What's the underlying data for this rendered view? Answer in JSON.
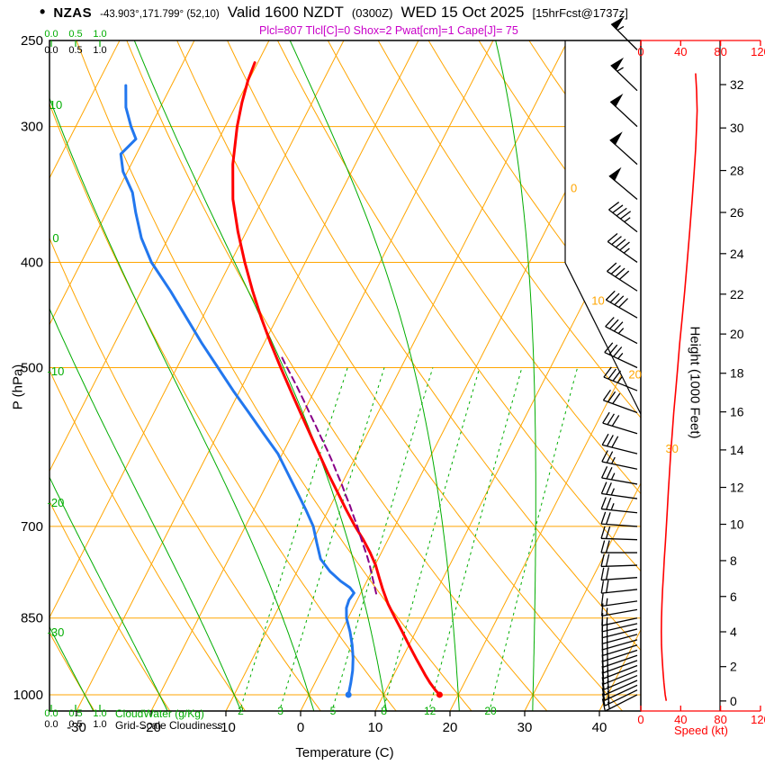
{
  "header": {
    "bullet": "•",
    "station": "NZAS",
    "coords": "-43.903°,171.799° (52,10)",
    "valid_main": "Valid 1600 NZDT",
    "valid_z": "(0300Z)",
    "valid_date": "WED 15 Oct 2025",
    "fcst": "[15hrFcst@1737z]",
    "params": "Plcl=807 Tlcl[C]=0 Shox=2 Pwat[cm]=1 Cape[J]= 75"
  },
  "axes": {
    "pressure_label": "P (hPa)",
    "pressure_ticks": [
      250,
      300,
      400,
      500,
      700,
      850,
      1000
    ],
    "temp_label": "Temperature (C)",
    "temp_ticks": [
      -30,
      -20,
      -10,
      0,
      10,
      20,
      30,
      40
    ],
    "height_label": "Height (1000 Feet)",
    "height_ticks": [
      0,
      2,
      4,
      6,
      8,
      10,
      12,
      14,
      16,
      18,
      20,
      22,
      24,
      26,
      28,
      30,
      32
    ],
    "speed_label": "Speed (kt)",
    "speed_ticks": [
      0,
      40,
      80,
      120
    ],
    "cloudwater_label": "CloudWater (g/Kg)",
    "cloudiness_label": "Grid-Scale Cloudiness",
    "scale_values": [
      "0.0",
      "0.5",
      "1.0"
    ]
  },
  "chart_data": {
    "type": "skewt",
    "pressure_range": [
      250,
      1035
    ],
    "temp_axis_range": [
      -30,
      40
    ],
    "isobars": [
      250,
      300,
      400,
      500,
      700,
      850,
      1000
    ],
    "isotherm_range": [
      -120,
      40,
      10
    ],
    "isotherm_labels": [
      0,
      10,
      20,
      30
    ],
    "dry_adiabat_range": [
      -40,
      120,
      10
    ],
    "dry_adiabat_labels": [
      10,
      0,
      -10,
      -20,
      -30
    ],
    "moist_adiabats": [
      -30,
      -20,
      -10,
      0,
      10,
      20,
      30
    ],
    "mixing_ratios": [
      2,
      3,
      5,
      8,
      12,
      20
    ],
    "temperature_profile": [
      [
        1000,
        17.5
      ],
      [
        990,
        16.6
      ],
      [
        975,
        15.4
      ],
      [
        960,
        14.3
      ],
      [
        950,
        13.6
      ],
      [
        925,
        11.8
      ],
      [
        900,
        10
      ],
      [
        875,
        8.2
      ],
      [
        850,
        6.3
      ],
      [
        825,
        4.4
      ],
      [
        800,
        2.7
      ],
      [
        780,
        1.4
      ],
      [
        760,
        0.1
      ],
      [
        740,
        -1.5
      ],
      [
        720,
        -3.3
      ],
      [
        700,
        -5.3
      ],
      [
        675,
        -7.7
      ],
      [
        650,
        -10.1
      ],
      [
        625,
        -12.6
      ],
      [
        600,
        -15.1
      ],
      [
        575,
        -17.7
      ],
      [
        550,
        -20.4
      ],
      [
        525,
        -23.2
      ],
      [
        500,
        -26.1
      ],
      [
        475,
        -29.1
      ],
      [
        450,
        -32.1
      ],
      [
        425,
        -35.1
      ],
      [
        400,
        -38.1
      ],
      [
        375,
        -41.1
      ],
      [
        350,
        -44
      ],
      [
        325,
        -46.4
      ],
      [
        300,
        -48.4
      ],
      [
        285,
        -49.4
      ],
      [
        272,
        -50.1
      ],
      [
        262,
        -50.4
      ]
    ],
    "dewpoint_profile": [
      [
        1000,
        5.3
      ],
      [
        990,
        5.1
      ],
      [
        975,
        4.8
      ],
      [
        950,
        4.2
      ],
      [
        925,
        3.4
      ],
      [
        900,
        2.4
      ],
      [
        875,
        1.2
      ],
      [
        850,
        -0.2
      ],
      [
        832,
        -0.9
      ],
      [
        818,
        -1.1
      ],
      [
        806,
        -0.9
      ],
      [
        797,
        -1.8
      ],
      [
        786,
        -3.5
      ],
      [
        770,
        -5.6
      ],
      [
        750,
        -7.7
      ],
      [
        725,
        -9.3
      ],
      [
        700,
        -10.9
      ],
      [
        675,
        -13.1
      ],
      [
        650,
        -15.5
      ],
      [
        625,
        -18
      ],
      [
        600,
        -20.6
      ],
      [
        575,
        -23.9
      ],
      [
        550,
        -27.3
      ],
      [
        525,
        -30.9
      ],
      [
        500,
        -34.5
      ],
      [
        475,
        -38.3
      ],
      [
        450,
        -42.1
      ],
      [
        425,
        -46.1
      ],
      [
        400,
        -50.6
      ],
      [
        380,
        -53.6
      ],
      [
        360,
        -56.1
      ],
      [
        345,
        -57.9
      ],
      [
        330,
        -60.6
      ],
      [
        318,
        -62.1
      ],
      [
        308,
        -61.1
      ],
      [
        300,
        -62.6
      ],
      [
        288,
        -64.6
      ],
      [
        275,
        -66.1
      ]
    ],
    "parcel_path": [
      [
        807,
        2.1
      ],
      [
        790,
        1.1
      ],
      [
        775,
        0.2
      ],
      [
        760,
        -0.7
      ],
      [
        745,
        -1.7
      ],
      [
        730,
        -2.8
      ],
      [
        715,
        -3.9
      ],
      [
        700,
        -5
      ],
      [
        685,
        -6.2
      ],
      [
        670,
        -7.4
      ],
      [
        655,
        -8.7
      ],
      [
        640,
        -10
      ],
      [
        625,
        -11.4
      ],
      [
        610,
        -12.8
      ],
      [
        595,
        -14.3
      ],
      [
        580,
        -15.9
      ],
      [
        565,
        -17.5
      ],
      [
        550,
        -19.2
      ],
      [
        535,
        -20.9
      ],
      [
        520,
        -22.7
      ],
      [
        505,
        -24.6
      ],
      [
        495,
        -25.9
      ],
      [
        488,
        -26.8
      ]
    ],
    "wind_barbs": [
      [
        1000,
        243,
        15
      ],
      [
        990,
        244,
        15
      ],
      [
        980,
        245,
        15
      ],
      [
        970,
        246,
        15
      ],
      [
        960,
        247,
        15
      ],
      [
        950,
        248,
        15
      ],
      [
        940,
        249,
        15
      ],
      [
        930,
        250,
        15
      ],
      [
        920,
        251,
        15
      ],
      [
        910,
        252,
        15
      ],
      [
        900,
        253,
        15
      ],
      [
        890,
        254,
        15
      ],
      [
        880,
        255,
        15
      ],
      [
        870,
        256,
        15
      ],
      [
        860,
        257,
        15
      ],
      [
        850,
        258,
        15
      ],
      [
        835,
        260,
        15
      ],
      [
        820,
        262,
        15
      ],
      [
        800,
        264,
        20
      ],
      [
        780,
        266,
        20
      ],
      [
        760,
        268,
        20
      ],
      [
        740,
        270,
        20
      ],
      [
        720,
        272,
        20
      ],
      [
        700,
        274,
        20
      ],
      [
        680,
        276,
        25
      ],
      [
        660,
        278,
        25
      ],
      [
        640,
        280,
        25
      ],
      [
        620,
        282,
        25
      ],
      [
        600,
        284,
        30
      ],
      [
        575,
        287,
        30
      ],
      [
        550,
        290,
        30
      ],
      [
        525,
        292,
        35
      ],
      [
        500,
        295,
        35
      ],
      [
        475,
        298,
        35
      ],
      [
        450,
        300,
        40
      ],
      [
        425,
        303,
        40
      ],
      [
        400,
        305,
        45
      ],
      [
        375,
        308,
        45
      ],
      [
        350,
        310,
        50
      ],
      [
        325,
        312,
        50
      ],
      [
        300,
        313,
        50
      ],
      [
        278,
        314,
        55
      ],
      [
        255,
        315,
        55
      ]
    ],
    "speed_profile": [
      [
        1013,
        25.5
      ],
      [
        1000,
        24.5
      ],
      [
        975,
        23.2
      ],
      [
        950,
        22.2
      ],
      [
        925,
        21.4
      ],
      [
        900,
        20.8
      ],
      [
        875,
        20.6
      ],
      [
        850,
        20.8
      ],
      [
        825,
        21.2
      ],
      [
        800,
        21.8
      ],
      [
        775,
        22.7
      ],
      [
        750,
        23.6
      ],
      [
        725,
        24.6
      ],
      [
        700,
        25.6
      ],
      [
        675,
        26.6
      ],
      [
        650,
        27.6
      ],
      [
        625,
        28.8
      ],
      [
        600,
        30
      ],
      [
        575,
        31.5
      ],
      [
        550,
        33
      ],
      [
        525,
        35
      ],
      [
        500,
        37
      ],
      [
        475,
        39
      ],
      [
        450,
        41.5
      ],
      [
        425,
        44
      ],
      [
        400,
        46.5
      ],
      [
        375,
        49
      ],
      [
        350,
        51.5
      ],
      [
        330,
        53.5
      ],
      [
        315,
        55
      ],
      [
        300,
        56
      ],
      [
        290,
        56.5
      ],
      [
        278,
        56
      ],
      [
        268,
        55
      ]
    ],
    "colors": {
      "grid": "#FFA500",
      "green": "#00AD00",
      "temp": "#FF0000",
      "dew": "#2277EE",
      "parcel": "#880088",
      "speed": "#FF0000",
      "barb": "#000000",
      "params_text": "#C800C8"
    }
  }
}
